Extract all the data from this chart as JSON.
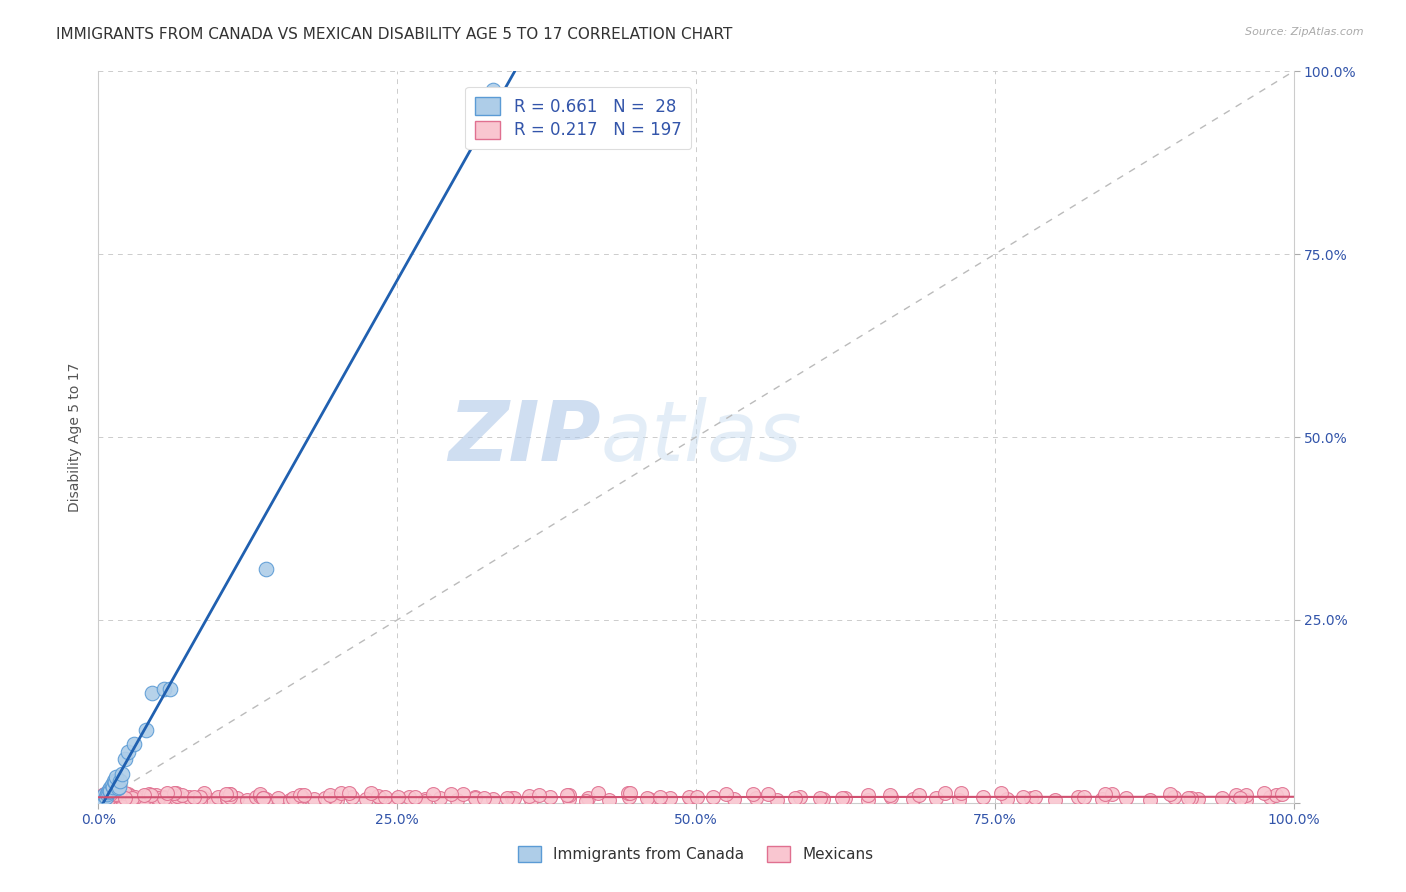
{
  "title": "IMMIGRANTS FROM CANADA VS MEXICAN DISABILITY AGE 5 TO 17 CORRELATION CHART",
  "source": "Source: ZipAtlas.com",
  "ylabel": "Disability Age 5 to 17",
  "r_canada": 0.661,
  "n_canada": 28,
  "r_mexican": 0.217,
  "n_mexican": 197,
  "canada_color": "#aecde8",
  "canada_edge_color": "#5b9bd5",
  "canada_line_color": "#2060b0",
  "mexican_color": "#f9c6d0",
  "mexican_edge_color": "#e07090",
  "mexican_line_color": "#d05070",
  "watermark_zip": "ZIP",
  "watermark_atlas": "atlas",
  "canada_x": [
    0.002,
    0.003,
    0.004,
    0.005,
    0.006,
    0.007,
    0.008,
    0.009,
    0.01,
    0.01,
    0.011,
    0.012,
    0.013,
    0.014,
    0.015,
    0.016,
    0.017,
    0.018,
    0.02,
    0.022,
    0.025,
    0.03,
    0.04,
    0.045,
    0.055,
    0.06,
    0.14,
    0.33
  ],
  "canada_y": [
    0.001,
    0.002,
    0.003,
    0.01,
    0.008,
    0.012,
    0.015,
    0.018,
    0.02,
    0.016,
    0.025,
    0.022,
    0.03,
    0.028,
    0.035,
    0.02,
    0.022,
    0.03,
    0.04,
    0.06,
    0.07,
    0.08,
    0.1,
    0.15,
    0.155,
    0.155,
    0.32,
    0.975
  ],
  "mexican_x": [
    0.001,
    0.002,
    0.003,
    0.004,
    0.005,
    0.006,
    0.007,
    0.008,
    0.009,
    0.01,
    0.012,
    0.014,
    0.016,
    0.018,
    0.02,
    0.023,
    0.026,
    0.03,
    0.034,
    0.038,
    0.042,
    0.046,
    0.05,
    0.055,
    0.06,
    0.065,
    0.07,
    0.076,
    0.082,
    0.088,
    0.094,
    0.1,
    0.108,
    0.116,
    0.124,
    0.132,
    0.14,
    0.15,
    0.16,
    0.17,
    0.18,
    0.19,
    0.2,
    0.212,
    0.224,
    0.236,
    0.248,
    0.26,
    0.273,
    0.286,
    0.3,
    0.315,
    0.33,
    0.346,
    0.362,
    0.378,
    0.394,
    0.41,
    0.427,
    0.444,
    0.461,
    0.478,
    0.496,
    0.514,
    0.532,
    0.55,
    0.568,
    0.587,
    0.606,
    0.625,
    0.644,
    0.663,
    0.682,
    0.701,
    0.72,
    0.74,
    0.76,
    0.78,
    0.8,
    0.82,
    0.84,
    0.86,
    0.88,
    0.9,
    0.92,
    0.94,
    0.96,
    0.98,
    0.985,
    0.99,
    0.003,
    0.007,
    0.012,
    0.018,
    0.025,
    0.035,
    0.048,
    0.065,
    0.085,
    0.11,
    0.001,
    0.004,
    0.008,
    0.013,
    0.019,
    0.027,
    0.037,
    0.05,
    0.066,
    0.085,
    0.108,
    0.135,
    0.165,
    0.198,
    0.234,
    0.273,
    0.315,
    0.36,
    0.408,
    0.459,
    0.002,
    0.005,
    0.009,
    0.015,
    0.022,
    0.031,
    0.042,
    0.055,
    0.07,
    0.088,
    0.11,
    0.135,
    0.163,
    0.194,
    0.228,
    0.265,
    0.305,
    0.348,
    0.394,
    0.443,
    0.494,
    0.548,
    0.604,
    0.662,
    0.722,
    0.784,
    0.848,
    0.914,
    0.952,
    0.975,
    0.006,
    0.015,
    0.028,
    0.044,
    0.063,
    0.085,
    0.11,
    0.138,
    0.169,
    0.203,
    0.24,
    0.28,
    0.323,
    0.369,
    0.418,
    0.47,
    0.525,
    0.583,
    0.644,
    0.708,
    0.774,
    0.842,
    0.912,
    0.96,
    0.002,
    0.01,
    0.022,
    0.038,
    0.057,
    0.08,
    0.107,
    0.138,
    0.172,
    0.21,
    0.251,
    0.295,
    0.342,
    0.392,
    0.445,
    0.501,
    0.56,
    0.622,
    0.687,
    0.755,
    0.825,
    0.897,
    0.955
  ],
  "mexican_y": [
    0.005,
    0.008,
    0.004,
    0.006,
    0.005,
    0.007,
    0.004,
    0.009,
    0.005,
    0.007,
    0.004,
    0.008,
    0.005,
    0.007,
    0.004,
    0.008,
    0.005,
    0.007,
    0.004,
    0.008,
    0.005,
    0.007,
    0.004,
    0.008,
    0.005,
    0.007,
    0.004,
    0.008,
    0.005,
    0.007,
    0.004,
    0.008,
    0.005,
    0.007,
    0.004,
    0.008,
    0.005,
    0.007,
    0.004,
    0.008,
    0.005,
    0.007,
    0.004,
    0.008,
    0.005,
    0.007,
    0.004,
    0.008,
    0.005,
    0.007,
    0.004,
    0.008,
    0.005,
    0.007,
    0.004,
    0.008,
    0.005,
    0.007,
    0.004,
    0.008,
    0.005,
    0.007,
    0.004,
    0.008,
    0.005,
    0.007,
    0.004,
    0.008,
    0.005,
    0.007,
    0.004,
    0.008,
    0.005,
    0.007,
    0.004,
    0.008,
    0.005,
    0.007,
    0.004,
    0.008,
    0.005,
    0.007,
    0.004,
    0.008,
    0.005,
    0.007,
    0.004,
    0.008,
    0.01,
    0.012,
    0.006,
    0.01,
    0.014,
    0.008,
    0.012,
    0.006,
    0.01,
    0.014,
    0.008,
    0.012,
    0.003,
    0.006,
    0.009,
    0.003,
    0.006,
    0.009,
    0.003,
    0.006,
    0.009,
    0.003,
    0.006,
    0.009,
    0.003,
    0.006,
    0.009,
    0.003,
    0.006,
    0.009,
    0.003,
    0.006,
    0.009,
    0.012,
    0.006,
    0.01,
    0.014,
    0.008,
    0.012,
    0.006,
    0.01,
    0.014,
    0.008,
    0.012,
    0.006,
    0.01,
    0.014,
    0.008,
    0.012,
    0.006,
    0.01,
    0.014,
    0.008,
    0.012,
    0.006,
    0.01,
    0.014,
    0.008,
    0.012,
    0.006,
    0.01,
    0.014,
    0.008,
    0.012,
    0.006,
    0.01,
    0.014,
    0.008,
    0.012,
    0.006,
    0.01,
    0.014,
    0.008,
    0.012,
    0.006,
    0.01,
    0.014,
    0.008,
    0.012,
    0.006,
    0.01,
    0.014,
    0.008,
    0.012,
    0.006,
    0.01,
    0.008,
    0.012,
    0.006,
    0.01,
    0.014,
    0.008,
    0.012,
    0.006,
    0.01,
    0.014,
    0.008,
    0.012,
    0.006,
    0.01,
    0.014,
    0.008,
    0.012,
    0.006,
    0.01,
    0.014,
    0.008,
    0.012,
    0.006
  ],
  "xlim": [
    0.0,
    1.0
  ],
  "ylim": [
    0.0,
    1.0
  ],
  "xticks": [
    0.0,
    0.25,
    0.5,
    0.75,
    1.0
  ],
  "yticks": [
    0.0,
    0.25,
    0.5,
    0.75,
    1.0
  ],
  "xtick_labels": [
    "0.0%",
    "25.0%",
    "50.0%",
    "75.0%",
    "100.0%"
  ],
  "ytick_labels_right": [
    "",
    "25.0%",
    "50.0%",
    "75.0%",
    "100.0%"
  ],
  "background_color": "#ffffff",
  "grid_color": "#cccccc",
  "title_fontsize": 11,
  "axis_label_fontsize": 10,
  "tick_fontsize": 10,
  "legend_fontsize": 12
}
